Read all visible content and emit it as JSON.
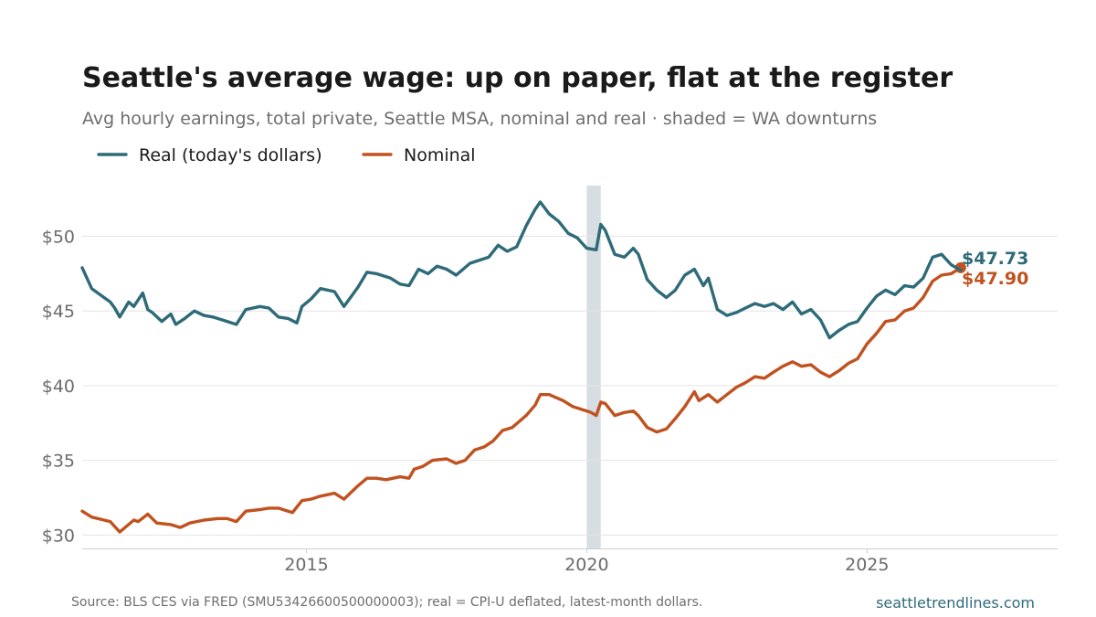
{
  "header": {
    "title": "Seattle's average wage: up on paper, flat at the register",
    "subtitle": "Avg hourly earnings, total private, Seattle MSA, nominal and real · shaded = WA downturns"
  },
  "footer": {
    "source": "Source: BLS CES via FRED (SMU53426600500000003); real = CPI-U deflated, latest-month dollars.",
    "site": "seattletrendlines.com"
  },
  "colors": {
    "real": "#2e6b78",
    "nominal": "#c0521f",
    "shade": "#d6dde3",
    "grid": "#e4e4e4",
    "axis_text": "#6b6b6b"
  },
  "chart_data": {
    "type": "line",
    "x_unit": "year",
    "xlim": [
      2011.0,
      2028.4
    ],
    "ylim": [
      29.1,
      53.4
    ],
    "yticks": [
      30,
      35,
      40,
      45,
      50
    ],
    "ytick_labels": [
      "$30",
      "$35",
      "$40",
      "$45",
      "$50"
    ],
    "xticks": [
      2015,
      2020,
      2025
    ],
    "xtick_labels": [
      "2015",
      "2020",
      "2025"
    ],
    "grid": "horizontal",
    "legend_position": "top-left",
    "shaded_periods": [
      [
        2020.0,
        2020.25
      ]
    ],
    "end_labels": [
      {
        "series": "Real (today's dollars)",
        "text": "$47.73"
      },
      {
        "series": "Nominal",
        "text": "$47.90"
      }
    ],
    "series": [
      {
        "name": "Real (today's dollars)",
        "color_key": "real",
        "points": [
          [
            2011.0,
            47.9
          ],
          [
            2011.17,
            46.5
          ],
          [
            2011.5,
            45.6
          ],
          [
            2011.58,
            45.2
          ],
          [
            2011.67,
            44.6
          ],
          [
            2011.83,
            45.6
          ],
          [
            2011.92,
            45.3
          ],
          [
            2012.08,
            46.2
          ],
          [
            2012.17,
            45.1
          ],
          [
            2012.25,
            44.9
          ],
          [
            2012.42,
            44.3
          ],
          [
            2012.58,
            44.8
          ],
          [
            2012.67,
            44.1
          ],
          [
            2012.83,
            44.5
          ],
          [
            2013.0,
            45.0
          ],
          [
            2013.17,
            44.7
          ],
          [
            2013.33,
            44.6
          ],
          [
            2013.5,
            44.4
          ],
          [
            2013.75,
            44.1
          ],
          [
            2013.92,
            45.1
          ],
          [
            2014.17,
            45.3
          ],
          [
            2014.33,
            45.2
          ],
          [
            2014.5,
            44.6
          ],
          [
            2014.67,
            44.5
          ],
          [
            2014.83,
            44.2
          ],
          [
            2014.92,
            45.3
          ],
          [
            2015.08,
            45.8
          ],
          [
            2015.25,
            46.5
          ],
          [
            2015.5,
            46.3
          ],
          [
            2015.67,
            45.3
          ],
          [
            2015.92,
            46.6
          ],
          [
            2016.08,
            47.6
          ],
          [
            2016.25,
            47.5
          ],
          [
            2016.5,
            47.2
          ],
          [
            2016.67,
            46.8
          ],
          [
            2016.83,
            46.7
          ],
          [
            2017.0,
            47.8
          ],
          [
            2017.17,
            47.5
          ],
          [
            2017.33,
            48.0
          ],
          [
            2017.5,
            47.8
          ],
          [
            2017.67,
            47.4
          ],
          [
            2017.92,
            48.2
          ],
          [
            2018.08,
            48.4
          ],
          [
            2018.25,
            48.6
          ],
          [
            2018.42,
            49.4
          ],
          [
            2018.58,
            49.0
          ],
          [
            2018.75,
            49.3
          ],
          [
            2018.92,
            50.7
          ],
          [
            2019.08,
            51.8
          ],
          [
            2019.17,
            52.3
          ],
          [
            2019.33,
            51.5
          ],
          [
            2019.5,
            51.0
          ],
          [
            2019.67,
            50.2
          ],
          [
            2019.83,
            49.9
          ],
          [
            2020.0,
            49.2
          ],
          [
            2020.17,
            49.1
          ],
          [
            2020.25,
            50.8
          ],
          [
            2020.33,
            50.4
          ],
          [
            2020.5,
            48.8
          ],
          [
            2020.67,
            48.6
          ],
          [
            2020.83,
            49.2
          ],
          [
            2020.92,
            48.8
          ],
          [
            2021.08,
            47.1
          ],
          [
            2021.25,
            46.4
          ],
          [
            2021.42,
            45.9
          ],
          [
            2021.58,
            46.4
          ],
          [
            2021.75,
            47.4
          ],
          [
            2021.92,
            47.8
          ],
          [
            2022.08,
            46.7
          ],
          [
            2022.17,
            47.2
          ],
          [
            2022.33,
            45.1
          ],
          [
            2022.5,
            44.7
          ],
          [
            2022.67,
            44.9
          ],
          [
            2022.83,
            45.2
          ],
          [
            2023.0,
            45.5
          ],
          [
            2023.17,
            45.3
          ],
          [
            2023.33,
            45.5
          ],
          [
            2023.5,
            45.1
          ],
          [
            2023.67,
            45.6
          ],
          [
            2023.83,
            44.8
          ],
          [
            2024.0,
            45.1
          ],
          [
            2024.17,
            44.4
          ],
          [
            2024.33,
            43.2
          ],
          [
            2024.5,
            43.7
          ],
          [
            2024.67,
            44.1
          ],
          [
            2024.83,
            44.3
          ],
          [
            2025.0,
            45.2
          ],
          [
            2025.17,
            46.0
          ],
          [
            2025.33,
            46.4
          ],
          [
            2025.5,
            46.1
          ],
          [
            2025.67,
            46.7
          ],
          [
            2025.83,
            46.6
          ],
          [
            2026.0,
            47.2
          ],
          [
            2026.17,
            48.6
          ],
          [
            2026.33,
            48.8
          ],
          [
            2026.5,
            48.1
          ],
          [
            2026.67,
            47.73
          ]
        ]
      },
      {
        "name": "Nominal",
        "color_key": "nominal",
        "points": [
          [
            2011.0,
            31.6
          ],
          [
            2011.17,
            31.2
          ],
          [
            2011.5,
            30.9
          ],
          [
            2011.67,
            30.2
          ],
          [
            2011.92,
            31.0
          ],
          [
            2012.0,
            30.9
          ],
          [
            2012.17,
            31.4
          ],
          [
            2012.33,
            30.8
          ],
          [
            2012.58,
            30.7
          ],
          [
            2012.75,
            30.5
          ],
          [
            2012.92,
            30.8
          ],
          [
            2013.17,
            31.0
          ],
          [
            2013.42,
            31.1
          ],
          [
            2013.58,
            31.1
          ],
          [
            2013.75,
            30.9
          ],
          [
            2013.92,
            31.6
          ],
          [
            2014.17,
            31.7
          ],
          [
            2014.33,
            31.8
          ],
          [
            2014.5,
            31.8
          ],
          [
            2014.75,
            31.5
          ],
          [
            2014.92,
            32.3
          ],
          [
            2015.08,
            32.4
          ],
          [
            2015.25,
            32.6
          ],
          [
            2015.5,
            32.8
          ],
          [
            2015.67,
            32.4
          ],
          [
            2015.92,
            33.3
          ],
          [
            2016.08,
            33.8
          ],
          [
            2016.25,
            33.8
          ],
          [
            2016.42,
            33.7
          ],
          [
            2016.67,
            33.9
          ],
          [
            2016.83,
            33.8
          ],
          [
            2016.92,
            34.4
          ],
          [
            2017.08,
            34.6
          ],
          [
            2017.25,
            35.0
          ],
          [
            2017.5,
            35.1
          ],
          [
            2017.67,
            34.8
          ],
          [
            2017.83,
            35.0
          ],
          [
            2018.0,
            35.7
          ],
          [
            2018.17,
            35.9
          ],
          [
            2018.33,
            36.3
          ],
          [
            2018.5,
            37.0
          ],
          [
            2018.67,
            37.2
          ],
          [
            2018.92,
            38.0
          ],
          [
            2019.08,
            38.7
          ],
          [
            2019.17,
            39.4
          ],
          [
            2019.33,
            39.4
          ],
          [
            2019.58,
            39.0
          ],
          [
            2019.75,
            38.6
          ],
          [
            2019.92,
            38.4
          ],
          [
            2020.08,
            38.2
          ],
          [
            2020.17,
            38.0
          ],
          [
            2020.25,
            38.9
          ],
          [
            2020.33,
            38.8
          ],
          [
            2020.5,
            38.0
          ],
          [
            2020.67,
            38.2
          ],
          [
            2020.83,
            38.3
          ],
          [
            2020.92,
            38.0
          ],
          [
            2021.08,
            37.2
          ],
          [
            2021.25,
            36.9
          ],
          [
            2021.42,
            37.1
          ],
          [
            2021.58,
            37.8
          ],
          [
            2021.75,
            38.6
          ],
          [
            2021.92,
            39.6
          ],
          [
            2022.0,
            39.0
          ],
          [
            2022.17,
            39.4
          ],
          [
            2022.33,
            38.9
          ],
          [
            2022.5,
            39.4
          ],
          [
            2022.67,
            39.9
          ],
          [
            2022.83,
            40.2
          ],
          [
            2023.0,
            40.6
          ],
          [
            2023.17,
            40.5
          ],
          [
            2023.33,
            40.9
          ],
          [
            2023.5,
            41.3
          ],
          [
            2023.67,
            41.6
          ],
          [
            2023.83,
            41.3
          ],
          [
            2024.0,
            41.4
          ],
          [
            2024.17,
            40.9
          ],
          [
            2024.33,
            40.6
          ],
          [
            2024.5,
            41.0
          ],
          [
            2024.67,
            41.5
          ],
          [
            2024.83,
            41.8
          ],
          [
            2025.0,
            42.8
          ],
          [
            2025.17,
            43.5
          ],
          [
            2025.33,
            44.3
          ],
          [
            2025.5,
            44.4
          ],
          [
            2025.67,
            45.0
          ],
          [
            2025.83,
            45.2
          ],
          [
            2026.0,
            45.9
          ],
          [
            2026.17,
            47.0
          ],
          [
            2026.33,
            47.4
          ],
          [
            2026.5,
            47.5
          ],
          [
            2026.67,
            47.9
          ]
        ]
      }
    ]
  }
}
